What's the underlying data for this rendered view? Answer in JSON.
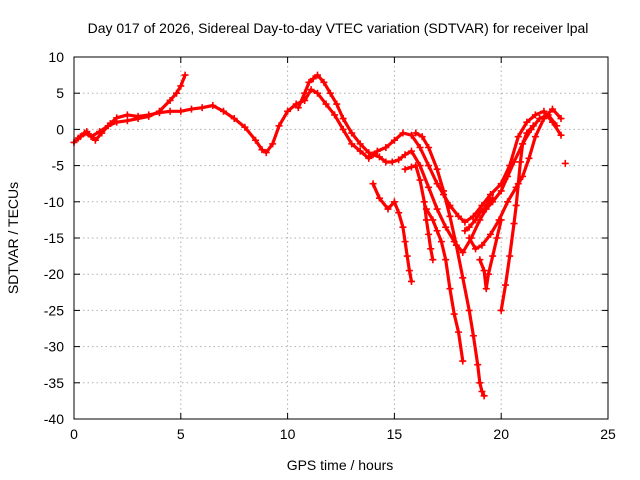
{
  "chart_data": {
    "type": "scatter",
    "title": "Day 017 of 2026, Sidereal Day-to-day VTEC variation (SDTVAR) for receiver lpal",
    "xlabel": "GPS time / hours",
    "ylabel": "SDTVAR / TECUs",
    "xlim": [
      0,
      25
    ],
    "ylim": [
      -40,
      10
    ],
    "xticks": [
      0,
      5,
      10,
      15,
      20,
      25
    ],
    "yticks": [
      -40,
      -35,
      -30,
      -25,
      -20,
      -15,
      -10,
      -5,
      0,
      5,
      10
    ],
    "grid": true,
    "legend": "none",
    "color": "#ff0000",
    "series": [
      {
        "x": [
          0.0,
          0.3,
          0.6,
          1.0,
          1.3,
          1.7,
          2.0,
          2.5,
          3.0,
          3.5,
          4.0,
          4.5,
          5.0,
          5.5,
          6.0,
          6.5,
          7.0,
          7.5,
          8.0,
          8.5,
          8.8,
          9.0,
          9.3,
          9.6,
          10.0,
          10.4,
          10.8,
          11.1,
          11.4,
          11.8,
          12.2,
          12.6,
          13.0,
          13.4,
          13.8,
          14.2,
          14.6,
          15.0,
          15.4,
          15.8,
          16.2,
          16.6,
          17.0,
          17.3,
          17.6,
          18.0,
          18.3,
          18.7,
          19.1,
          19.5,
          20.0,
          20.4,
          20.8,
          21.2,
          21.6,
          22.0,
          22.4,
          22.8
        ],
        "y": [
          -1.8,
          -1.0,
          -0.3,
          -1.5,
          -0.5,
          0.8,
          1.6,
          2.0,
          1.8,
          2.0,
          2.3,
          2.5,
          2.5,
          2.8,
          3.0,
          3.3,
          2.5,
          1.5,
          0.3,
          -1.5,
          -2.8,
          -3.2,
          -2.0,
          0.5,
          2.5,
          3.5,
          4.0,
          5.5,
          5.0,
          3.5,
          2.0,
          0.0,
          -2.0,
          -3.0,
          -4.0,
          -3.0,
          -2.5,
          -1.5,
          -0.5,
          -0.8,
          -2.5,
          -5.0,
          -7.5,
          -9.0,
          -10.5,
          -12.0,
          -12.8,
          -12.0,
          -10.5,
          -9.0,
          -7.5,
          -5.0,
          -1.0,
          1.0,
          2.0,
          2.5,
          1.0,
          -0.8
        ]
      },
      {
        "x": [
          0.2,
          0.5,
          0.8,
          1.2,
          1.6,
          2.0,
          2.5,
          3.0,
          3.5,
          4.0,
          4.5,
          4.8,
          5.0,
          5.2
        ],
        "y": [
          -1.2,
          -0.5,
          -1.0,
          -0.3,
          0.5,
          1.0,
          1.2,
          1.5,
          1.8,
          2.5,
          4.0,
          5.0,
          6.0,
          7.5
        ]
      },
      {
        "x": [
          10.5,
          10.8,
          11.0,
          11.2,
          11.4,
          11.7,
          12.0,
          12.3,
          12.6,
          13.0,
          13.4,
          13.8,
          14.0,
          14.3,
          14.6,
          14.9,
          15.2,
          15.5,
          15.8,
          16.2,
          16.6,
          17.0,
          17.4,
          17.8,
          18.2,
          18.6,
          19.0,
          19.3,
          19.6,
          20.0,
          20.3,
          20.6,
          21.0,
          21.4,
          21.8,
          22.2,
          22.6
        ],
        "y": [
          3.0,
          5.0,
          6.5,
          7.0,
          7.5,
          6.5,
          5.0,
          3.5,
          1.5,
          -0.5,
          -2.0,
          -3.2,
          -3.5,
          -3.8,
          -4.5,
          -4.5,
          -4.2,
          -3.5,
          -3.0,
          -5.0,
          -8.0,
          -11.0,
          -13.5,
          -15.5,
          -17.0,
          -15.0,
          -12.5,
          -11.0,
          -10.0,
          -8.5,
          -6.5,
          -4.5,
          -2.0,
          0.0,
          1.5,
          2.0,
          0.5
        ]
      },
      {
        "x": [
          14.0,
          14.3,
          14.7,
          15.0,
          15.2,
          15.4,
          15.5,
          15.6,
          15.7,
          15.8
        ],
        "y": [
          -7.5,
          -9.5,
          -11.0,
          -10.0,
          -11.5,
          -13.5,
          -15.5,
          -17.5,
          -19.5,
          -21.0
        ]
      },
      {
        "x": [
          15.5,
          15.8,
          16.0,
          16.2,
          16.4,
          16.5,
          16.6,
          16.7,
          16.8
        ],
        "y": [
          -5.5,
          -5.2,
          -5.0,
          -7.0,
          -10.0,
          -12.5,
          -14.5,
          -16.5,
          -18.0
        ]
      },
      {
        "x": [
          16.5,
          16.8,
          17.0,
          17.2,
          17.4,
          17.6,
          17.8,
          18.0,
          18.2
        ],
        "y": [
          -11.0,
          -12.5,
          -14.0,
          -15.5,
          -18.0,
          -22.0,
          -25.5,
          -28.0,
          -32.0
        ]
      },
      {
        "x": [
          16.0,
          16.3,
          16.6,
          17.0,
          17.3,
          17.6,
          17.9,
          18.2,
          18.5,
          18.7,
          18.9,
          19.0,
          19.1,
          19.2
        ],
        "y": [
          -0.5,
          -1.0,
          -2.5,
          -5.5,
          -8.5,
          -12.0,
          -16.0,
          -20.5,
          -25.0,
          -28.5,
          -32.5,
          -35.0,
          -36.2,
          -36.8
        ]
      },
      {
        "x": [
          18.3,
          18.5,
          18.8,
          19.0,
          19.2,
          19.4,
          19.6
        ],
        "y": [
          -14.0,
          -13.5,
          -12.5,
          -11.5,
          -11.0,
          -10.0,
          -9.5
        ]
      },
      {
        "x": [
          19.0,
          19.2,
          19.3,
          19.4,
          19.6,
          19.8,
          20.0
        ],
        "y": [
          -18.0,
          -19.5,
          -22.0,
          -20.0,
          -17.5,
          -15.0,
          -12.5
        ]
      },
      {
        "x": [
          18.5,
          18.8,
          19.1,
          19.5,
          19.9,
          20.3,
          20.7,
          21.0,
          21.3,
          21.6,
          22.0,
          22.4,
          22.8
        ],
        "y": [
          -15.0,
          -16.5,
          -16.0,
          -14.5,
          -12.5,
          -10.0,
          -8.0,
          -6.5,
          -4.0,
          -1.0,
          1.5,
          2.8,
          1.5
        ]
      },
      {
        "x": [
          20.0,
          20.2,
          20.4,
          20.6,
          20.7,
          20.8,
          20.9,
          21.0,
          21.2,
          21.5
        ],
        "y": [
          -25.0,
          -21.5,
          -17.5,
          -13.0,
          -10.5,
          -7.5,
          -4.5,
          -2.0,
          -0.5,
          0.5
        ]
      },
      {
        "x": [
          23.0
        ],
        "y": [
          -4.7
        ]
      }
    ]
  }
}
